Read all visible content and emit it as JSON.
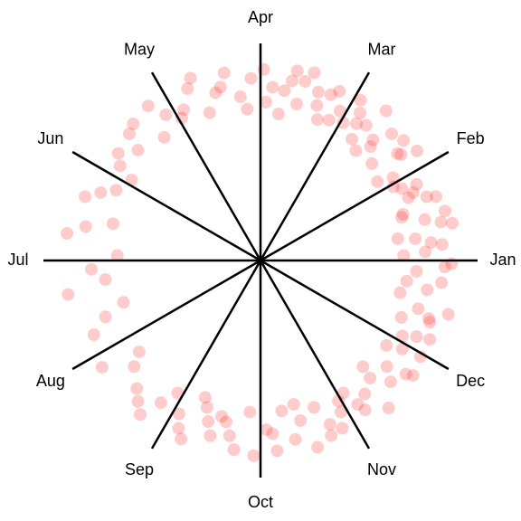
{
  "chart_data": {
    "type": "polar-scatter",
    "categories": [
      "Jan",
      "Feb",
      "Mar",
      "Apr",
      "May",
      "Jun",
      "Jul",
      "Aug",
      "Sep",
      "Oct",
      "Nov",
      "Dec"
    ],
    "series": [
      {
        "color": "#ff0000",
        "theta": [
          2,
          5,
          8,
          11,
          14,
          17,
          20,
          23,
          26,
          29,
          3,
          9,
          15,
          21,
          27,
          6,
          12,
          18,
          24,
          32,
          35,
          38,
          41,
          44,
          47,
          50,
          53,
          56,
          59,
          34,
          40,
          46,
          52,
          58,
          37,
          49,
          55,
          62,
          65,
          68,
          71,
          74,
          77,
          80,
          83,
          86,
          89,
          64,
          70,
          76,
          82,
          88,
          67,
          79,
          93,
          97,
          101,
          105,
          109,
          113,
          117,
          95,
          103,
          111,
          119,
          123,
          128,
          133,
          138,
          143,
          148,
          126,
          136,
          146,
          154,
          160,
          166,
          172,
          178,
          157,
          169,
          183,
          190,
          197,
          204,
          187,
          200,
          214,
          220,
          226,
          232,
          238,
          217,
          229,
          235,
          242,
          246,
          250,
          254,
          258,
          262,
          266,
          244,
          252,
          260,
          268,
          248,
          256,
          272,
          275,
          278,
          281,
          284,
          287,
          290,
          293,
          296,
          299,
          274,
          283,
          292,
          298,
          302,
          305,
          308,
          311,
          314,
          317,
          320,
          323,
          326,
          329,
          304,
          313,
          322,
          328,
          332,
          335,
          338,
          341,
          344,
          347,
          350,
          353,
          356,
          359,
          334,
          343,
          352,
          358,
          340
        ],
        "r": [
          0.66,
          0.84,
          0.72,
          0.9,
          0.78,
          0.68,
          0.86,
          0.74,
          0.8,
          0.7,
          0.76,
          0.64,
          0.88,
          0.82,
          0.73,
          0.79,
          0.85,
          0.69,
          0.77,
          0.72,
          0.88,
          0.8,
          0.68,
          0.84,
          0.76,
          0.9,
          0.7,
          0.82,
          0.74,
          0.65,
          0.86,
          0.73,
          0.79,
          0.87,
          0.81,
          0.67,
          0.77,
          0.78,
          0.86,
          0.7,
          0.82,
          0.9,
          0.74,
          0.84,
          0.68,
          0.8,
          0.88,
          0.72,
          0.76,
          0.85,
          0.79,
          0.73,
          0.83,
          0.89,
          0.84,
          0.76,
          0.88,
          0.8,
          0.72,
          0.86,
          0.78,
          0.7,
          0.82,
          0.9,
          0.75,
          0.8,
          0.72,
          0.86,
          0.76,
          0.82,
          0.7,
          0.88,
          0.84,
          0.78,
          0.74,
          0.86,
          0.7,
          0.9,
          0.66,
          0.8,
          0.82,
          0.78,
          0.9,
          0.66,
          0.84,
          0.72,
          0.76,
          0.88,
          0.76,
          0.82,
          0.9,
          0.72,
          0.7,
          0.86,
          0.8,
          0.8,
          0.9,
          0.72,
          0.84,
          0.76,
          0.88,
          0.7,
          0.86,
          0.78,
          0.82,
          0.9,
          0.68,
          0.74,
          0.78,
          0.88,
          0.7,
          0.84,
          0.76,
          0.9,
          0.72,
          0.82,
          0.86,
          0.74,
          0.8,
          0.68,
          0.87,
          0.79,
          0.72,
          0.84,
          0.78,
          0.9,
          0.68,
          0.82,
          0.76,
          0.88,
          0.7,
          0.86,
          0.8,
          0.74,
          0.85,
          0.77,
          0.74,
          0.86,
          0.7,
          0.82,
          0.9,
          0.66,
          0.78,
          0.84,
          0.72,
          0.88,
          0.8,
          0.76,
          0.68,
          0.85,
          0.83
        ]
      }
    ],
    "rlim": [
      0,
      1
    ]
  }
}
